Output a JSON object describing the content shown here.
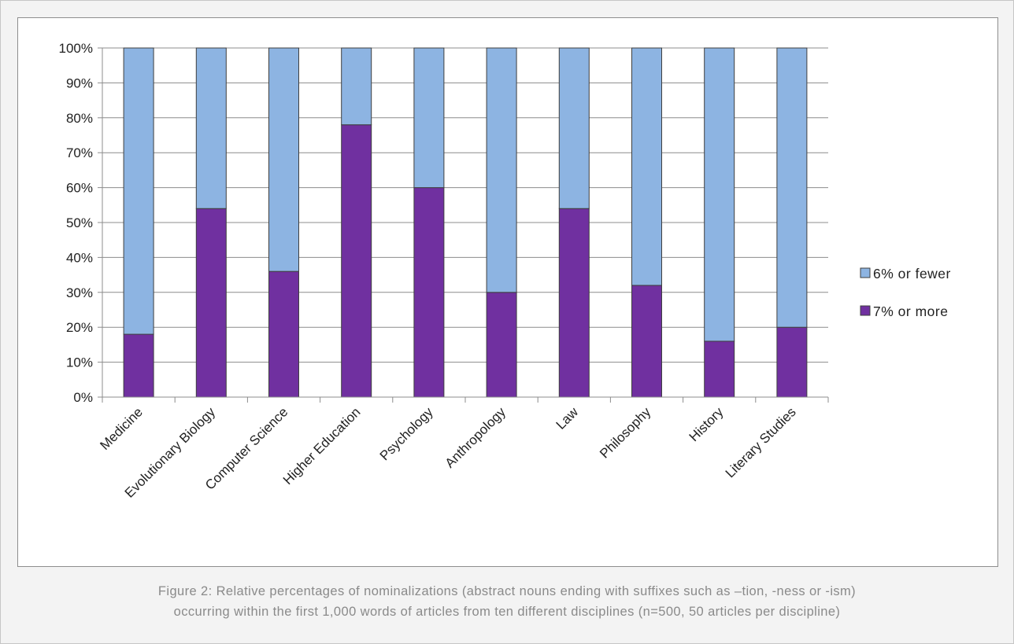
{
  "chart_data": {
    "type": "bar",
    "stacked": true,
    "categories": [
      "Medicine",
      "Evolutionary Biology",
      "Computer Science",
      "Higher Education",
      "Psychology",
      "Anthropology",
      "Law",
      "Philosophy",
      "History",
      "Literary Studies"
    ],
    "series": [
      {
        "name": "7% or more",
        "color": "#7030a0",
        "values": [
          18,
          54,
          36,
          78,
          60,
          30,
          54,
          32,
          16,
          20
        ]
      },
      {
        "name": "6% or fewer",
        "color": "#8db4e2",
        "values": [
          82,
          46,
          64,
          22,
          40,
          70,
          46,
          68,
          84,
          80
        ]
      }
    ],
    "ylim": [
      0,
      100
    ],
    "yticks": [
      "0%",
      "10%",
      "20%",
      "30%",
      "40%",
      "50%",
      "60%",
      "70%",
      "80%",
      "90%",
      "100%"
    ],
    "grid": true,
    "legend_position": "right",
    "legend_order": [
      "6% or fewer",
      "7% or more"
    ]
  },
  "caption": {
    "line1": "Figure 2: Relative percentages of nominalizations (abstract nouns ending with suffixes such as –tion, -ness or -ism)",
    "line2": "occurring within the first 1,000 words of articles from ten different disciplines (n=500, 50 articles per discipline)"
  }
}
